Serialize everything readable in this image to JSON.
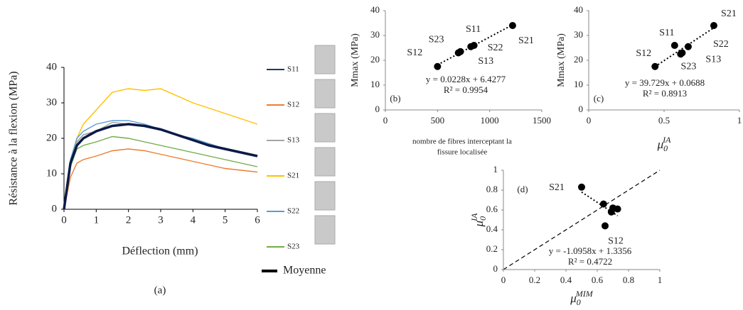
{
  "chart_data": [
    {
      "type": "line",
      "label": "(a)",
      "ylabel": "Résistance à la flexion (MPa)",
      "xlabel": "Déflection (mm)",
      "xlim": [
        0,
        6
      ],
      "xticks": [
        0,
        1,
        2,
        3,
        4,
        5,
        6
      ],
      "ylim": [
        0,
        40
      ],
      "yticks": [
        0,
        10,
        20,
        30,
        40
      ],
      "legend": "right",
      "x": [
        0,
        0.2,
        0.4,
        0.6,
        1,
        1.5,
        2,
        2.5,
        3,
        3.5,
        4,
        4.5,
        5,
        5.5,
        6
      ],
      "series": [
        {
          "name": "S11",
          "color": "#1f3864",
          "values": [
            0,
            13,
            19,
            21,
            22,
            23.5,
            24,
            23.5,
            22.5,
            21,
            19.5,
            18.5,
            17,
            16,
            15
          ]
        },
        {
          "name": "S12",
          "color": "#ed7d31",
          "values": [
            0,
            9,
            13,
            14,
            15,
            16.5,
            17,
            16.5,
            15.5,
            14.5,
            13.5,
            12.5,
            11.5,
            11,
            10.5
          ]
        },
        {
          "name": "S13",
          "color": "#a5a5a5",
          "values": [
            0,
            13,
            19,
            21,
            22,
            24.5,
            24,
            23.5,
            22.5,
            21,
            19.5,
            18.5,
            17,
            16,
            15
          ]
        },
        {
          "name": "S21",
          "color": "#ffc000",
          "values": [
            0,
            12,
            20,
            24,
            28,
            33,
            34,
            33.5,
            34,
            32,
            30,
            28.5,
            27,
            25.5,
            24
          ]
        },
        {
          "name": "S22",
          "color": "#5b9bd5",
          "values": [
            0,
            14,
            20,
            22,
            24,
            25,
            25,
            24,
            22.5,
            21,
            20,
            18.5,
            17,
            16,
            15
          ]
        },
        {
          "name": "S23",
          "color": "#70ad47",
          "values": [
            0,
            12,
            17,
            18,
            19,
            20.5,
            20,
            19,
            18,
            17,
            16,
            15,
            14,
            13,
            12
          ]
        },
        {
          "name": "Moyenne",
          "color": "#0b1a47",
          "values": [
            0,
            13,
            18,
            20,
            22,
            23.5,
            24,
            23.5,
            22.5,
            21,
            19.5,
            18,
            17,
            16,
            15
          ]
        }
      ]
    },
    {
      "type": "scatter",
      "label": "(b)",
      "ylabel": "Mmax (MPa)",
      "xlabel": [
        "nombre de fibres interceptant la",
        "fissure localisée"
      ],
      "xlim": [
        0,
        1500
      ],
      "xticks": [
        0,
        500,
        1000,
        1500
      ],
      "ylim": [
        0,
        40
      ],
      "yticks": [
        0,
        10,
        20,
        30,
        40
      ],
      "color": "#000000",
      "x": [
        500,
        700,
        720,
        820,
        850,
        1220
      ],
      "values": [
        17.5,
        23,
        23.5,
        25.5,
        26,
        34
      ],
      "point_labels": [
        "S12",
        "S23",
        "S11",
        "S13",
        "S22",
        "S21"
      ],
      "equation": "y = 0.0228x + 6.4277",
      "r2": "R² = 0.9954"
    },
    {
      "type": "scatter",
      "label": "(c)",
      "ylabel": "Mmax (MPa)",
      "xlabel": {
        "base": "μ",
        "sub": "0",
        "sup": "IA"
      },
      "xlim": [
        0,
        1
      ],
      "xticks": [
        0,
        0.5,
        1
      ],
      "ylim": [
        0,
        40
      ],
      "yticks": [
        0,
        10,
        20,
        30,
        40
      ],
      "color": "#000000",
      "x": [
        0.44,
        0.57,
        0.62,
        0.61,
        0.66,
        0.83
      ],
      "values": [
        17.5,
        26,
        23,
        22.5,
        25.5,
        34
      ],
      "point_labels": [
        "S12",
        "S11",
        "S23",
        "S13",
        "S22",
        "S21"
      ],
      "equation": "y = 39.729x + 0.0688",
      "r2": "R² = 0.8913"
    },
    {
      "type": "scatter",
      "label": "(d)",
      "ylabel": {
        "base": "μ",
        "sub": "0",
        "sup": "IA"
      },
      "xlabel": {
        "base": "μ",
        "sub": "0",
        "sup": "MIM"
      },
      "xlim": [
        0,
        1
      ],
      "xticks": [
        0,
        0.2,
        0.4,
        0.6,
        0.8,
        1
      ],
      "ylim": [
        0,
        1
      ],
      "yticks": [
        0,
        0.2,
        0.4,
        0.6,
        0.8,
        1
      ],
      "color": "#000000",
      "x": [
        0.5,
        0.64,
        0.69,
        0.7,
        0.73,
        0.65
      ],
      "values": [
        0.83,
        0.66,
        0.58,
        0.62,
        0.61,
        0.44
      ],
      "point_labels": [
        "S21",
        null,
        null,
        null,
        null,
        "S12"
      ],
      "equation": "y = -1.0958x + 1.3356",
      "r2": "R² = 0.4722"
    }
  ]
}
